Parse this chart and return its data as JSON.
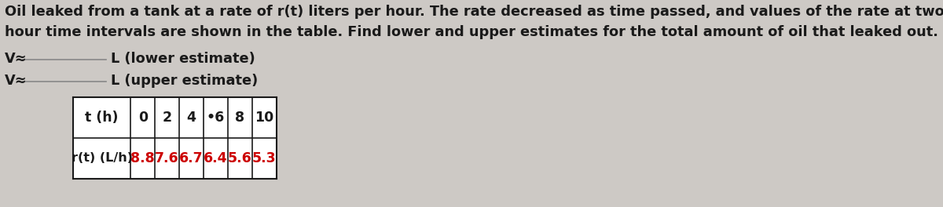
{
  "background_color": "#cdc9c5",
  "text_color": "#1a1a1a",
  "line1": "Oil leaked from a tank at a rate of r(t) liters per hour. The rate decreased as time passed, and values of the rate at two",
  "line2": "hour time intervals are shown in the table. Find lower and upper estimates for the total amount of oil that leaked out.",
  "lower_label": "L (lower estimate)",
  "upper_label": "L (upper estimate)",
  "v_approx": "V≈",
  "table_headers": [
    "t (h)",
    "0",
    "2",
    "4",
    "•6",
    "8",
    "10"
  ],
  "table_row2_label": "r(t) (L/h)",
  "table_row2_values": [
    "8.8",
    "7.6",
    "6.7",
    "6.4",
    "5.6",
    "5.3"
  ],
  "table_values_color": "#cc0000",
  "table_border_color": "#1a1a1a",
  "font_size_para": 12.8,
  "font_size_table": 12.5,
  "font_size_label": 12.8,
  "underline_color": "#888888"
}
